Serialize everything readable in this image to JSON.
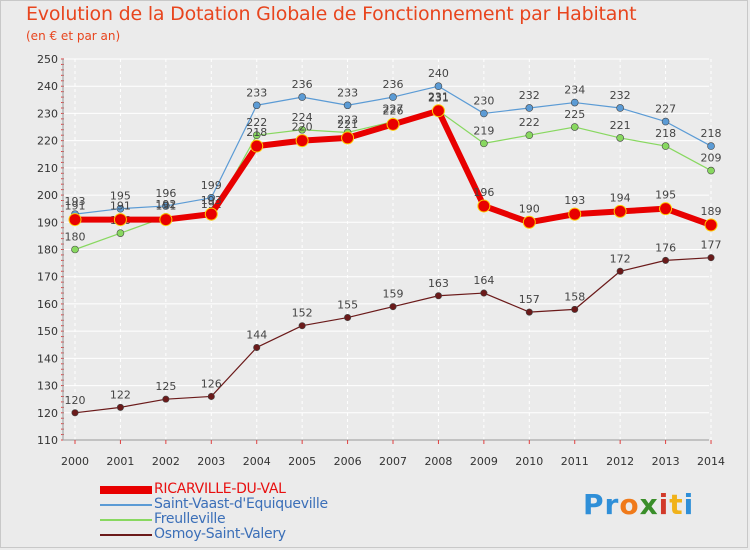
{
  "header": {
    "title": "Evolution de la Dotation Globale de Fonctionnement par Habitant",
    "subtitle": "(en € et par an)"
  },
  "logo": {
    "letters": [
      "P",
      "r",
      "o",
      "x",
      "i",
      "t",
      "i"
    ],
    "colors": [
      "#2f8fd8",
      "#2f8fd8",
      "#f07a1a",
      "#3a8e2a",
      "#d23a2a",
      "#f0b21a",
      "#2f8fd8"
    ]
  },
  "chart_data": {
    "type": "line",
    "title": "Evolution de la Dotation Globale de Fonctionnement par Habitant",
    "subtitle": "(en € et par an)",
    "xlabel": "",
    "ylabel": "",
    "ylim": [
      110,
      250
    ],
    "ytick_step": 10,
    "grid": true,
    "legend_position": "bottom-left",
    "categories": [
      "2000",
      "2001",
      "2002",
      "2003",
      "2004",
      "2005",
      "2006",
      "2007",
      "2008",
      "2009",
      "2010",
      "2011",
      "2012",
      "2013",
      "2014"
    ],
    "series": [
      {
        "name": "RICARVILLE-DU-VAL",
        "color": "#e80000",
        "values": [
          191,
          191,
          191,
          193,
          218,
          220,
          221,
          226,
          231,
          196,
          190,
          193,
          194,
          195,
          189
        ]
      },
      {
        "name": "Saint-Vaast-d'Equiqueville",
        "color": "#5b9bd5",
        "values": [
          193,
          195,
          196,
          199,
          233,
          236,
          233,
          236,
          240,
          230,
          232,
          234,
          232,
          227,
          218
        ]
      },
      {
        "name": "Freulleville",
        "color": "#88d860",
        "values": [
          180,
          186,
          192,
          192,
          222,
          224,
          223,
          227,
          231,
          219,
          222,
          225,
          221,
          218,
          209
        ]
      },
      {
        "name": "Osmoy-Saint-Valery",
        "color": "#6b1a1a",
        "values": [
          120,
          122,
          125,
          126,
          144,
          152,
          155,
          159,
          163,
          164,
          157,
          158,
          172,
          176,
          177
        ]
      }
    ]
  }
}
